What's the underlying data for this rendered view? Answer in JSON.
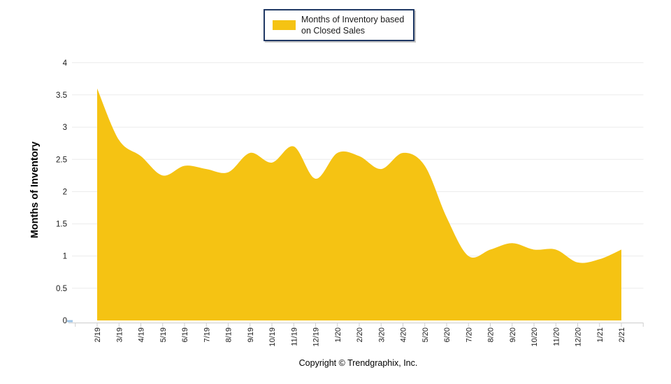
{
  "legend": {
    "label": "Months of Inventory based on Closed Sales",
    "swatch_color": "#F5C313"
  },
  "footer": {
    "copyright": "Copyright © Trendgraphix, Inc."
  },
  "y_axis": {
    "label": "Months of Inventory",
    "ticks": [
      "4",
      "3.5",
      "3",
      "2.5",
      "2",
      "1.5",
      "1",
      "0.5",
      "0"
    ]
  },
  "chart_data": {
    "type": "area",
    "title": "",
    "xlabel": "",
    "ylabel": "Months of Inventory",
    "ylim": [
      0,
      4
    ],
    "ytick_step": 0.5,
    "grid": "horizontal",
    "legend_position": "top-center",
    "x": [
      "2/19",
      "3/19",
      "4/19",
      "5/19",
      "6/19",
      "7/19",
      "8/19",
      "9/19",
      "10/19",
      "11/19",
      "12/19",
      "1/20",
      "2/20",
      "3/20",
      "4/20",
      "5/20",
      "6/20",
      "7/20",
      "8/20",
      "9/20",
      "10/20",
      "11/20",
      "12/20",
      "1/21",
      "2/21"
    ],
    "series": [
      {
        "name": "Months of Inventory based on Closed Sales",
        "values": [
          3.6,
          2.8,
          2.55,
          2.25,
          2.4,
          2.35,
          2.3,
          2.6,
          2.45,
          2.7,
          2.2,
          2.6,
          2.55,
          2.35,
          2.6,
          2.4,
          1.6,
          1.0,
          1.1,
          1.2,
          1.1,
          1.1,
          0.9,
          0.95,
          1.1
        ]
      }
    ],
    "colors": {
      "area_fill": "#F5C313",
      "gridline": "#ebebeb",
      "axis_line": "#d4d4d4",
      "tick_mark": "#cfcfcf",
      "origin_tick_blue": "#9DC3E6",
      "legend_border": "#1F3864"
    }
  }
}
